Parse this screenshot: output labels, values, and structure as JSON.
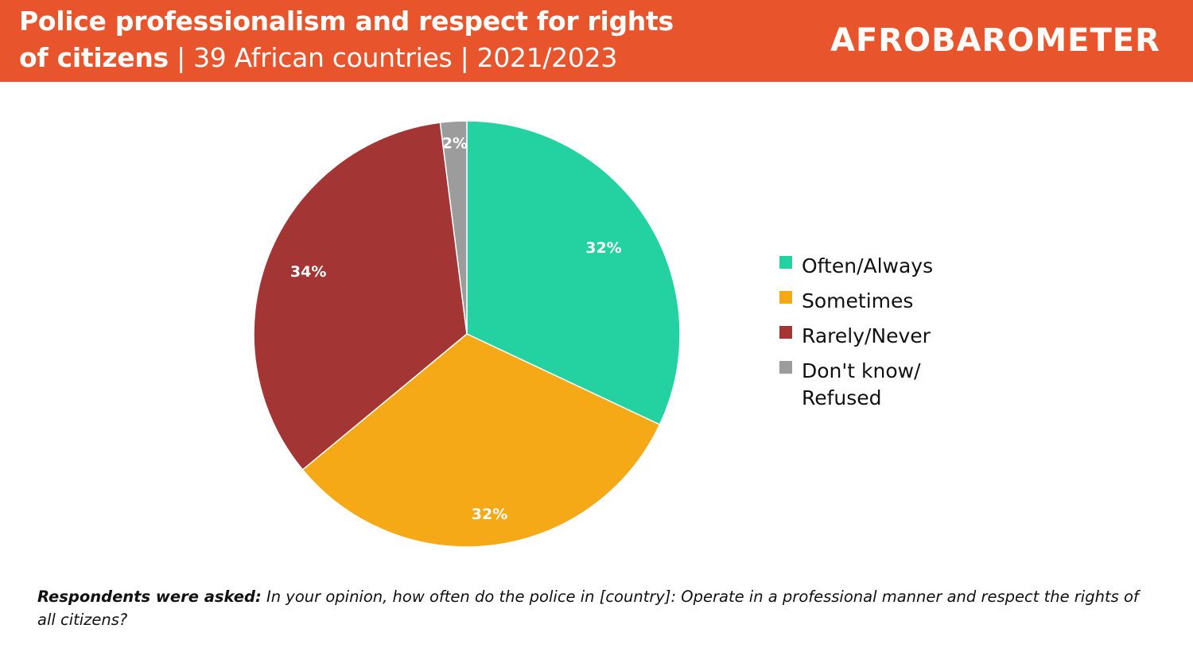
{
  "header": {
    "title_bold_line1": "Police professionalism and respect for rights",
    "title_bold_line2": "of citizens",
    "title_subtitle": " | 39 African countries | 2021/2023",
    "logo_text": "AFROBAROMETER",
    "background_color": "#E8552D"
  },
  "chart_data": {
    "type": "pie",
    "title": "Police professionalism and respect for rights of citizens | 39 African countries | 2021/2023",
    "categories": [
      "Often/Always",
      "Sometimes",
      "Rarely/Never",
      "Don't know/ Refused"
    ],
    "values": [
      32,
      32,
      34,
      2
    ],
    "labels": [
      "32%",
      "32%",
      "34%",
      "2%"
    ],
    "colors": [
      "#24D1A0",
      "#F6A916",
      "#A33534",
      "#9C9C9C"
    ],
    "start_angle": "12 o'clock, clockwise",
    "legend_position": "right"
  },
  "legend": {
    "items": [
      {
        "label": "Often/Always",
        "color": "#24D1A0"
      },
      {
        "label": "Sometimes",
        "color": "#F6A916"
      },
      {
        "label": "Rarely/Never",
        "color": "#A33534"
      },
      {
        "label_line1": "Don't know/",
        "label_line2": "Refused",
        "color": "#9C9C9C"
      }
    ]
  },
  "footnote": {
    "lead": "Respondents were asked:",
    "question": " In your opinion, how often do the police in [country]: Operate in a professional manner and respect the rights of all citizens?"
  }
}
